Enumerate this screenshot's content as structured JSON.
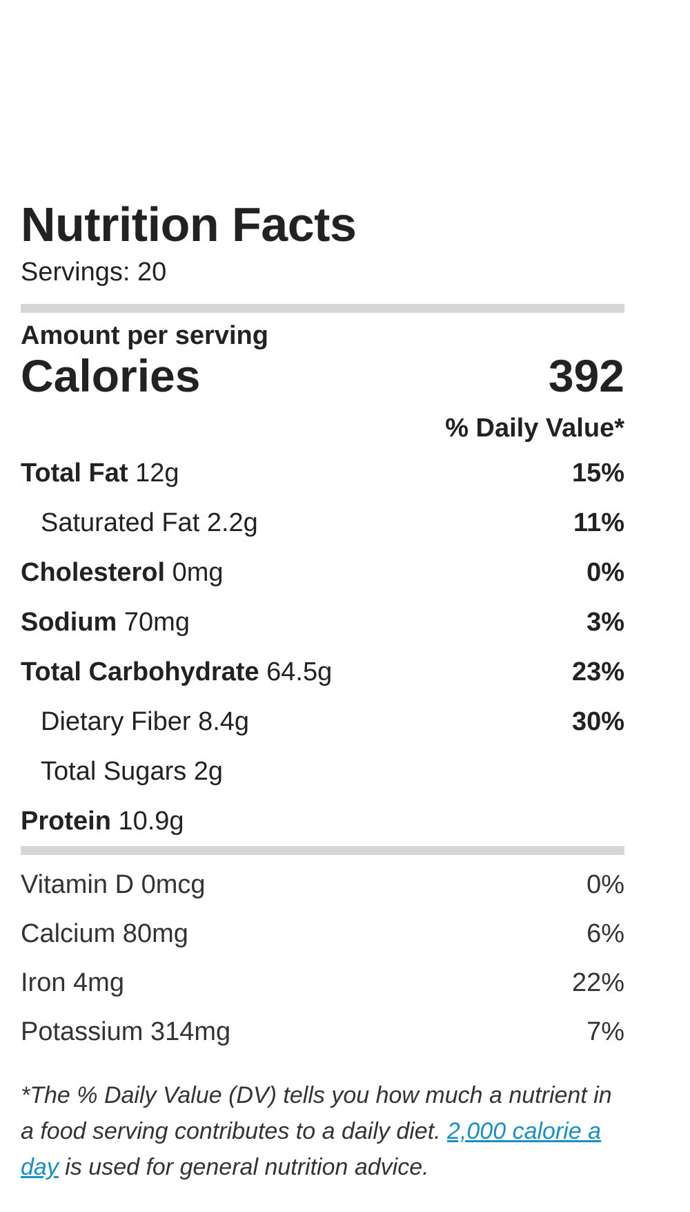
{
  "title": "Nutrition Facts",
  "servings": "Servings: 20",
  "amount_per_serving": "Amount per serving",
  "calories": {
    "label": "Calories",
    "value": "392"
  },
  "daily_value_header": "% Daily Value*",
  "nutrients": [
    {
      "name": "Total Fat",
      "amount": "12g",
      "percent": "15%"
    },
    {
      "name": "Saturated Fat",
      "amount": "2.2g",
      "percent": "11%"
    },
    {
      "name": "Cholesterol",
      "amount": "0mg",
      "percent": "0%"
    },
    {
      "name": "Sodium",
      "amount": "70mg",
      "percent": "3%"
    },
    {
      "name": "Total Carbohydrate",
      "amount": "64.5g",
      "percent": "23%"
    },
    {
      "name": "Dietary Fiber",
      "amount": "8.4g",
      "percent": "30%"
    },
    {
      "name": "Total Sugars",
      "amount": "2g",
      "percent": ""
    },
    {
      "name": "Protein",
      "amount": "10.9g",
      "percent": ""
    }
  ],
  "vitamins": [
    {
      "label": "Vitamin D 0mcg",
      "percent": "0%"
    },
    {
      "label": "Calcium 80mg",
      "percent": "6%"
    },
    {
      "label": "Iron 4mg",
      "percent": "22%"
    },
    {
      "label": "Potassium 314mg",
      "percent": "7%"
    }
  ],
  "footnote": {
    "intro": "*The % Daily Value (DV) tells you how much a nutrient in a food serving contributes to a daily diet.",
    "link_text": "2,000 calorie a day",
    "outro": "is used for general nutrition advice."
  },
  "colors": {
    "bar": "#d6d6d6",
    "link": "#1a8fc4",
    "text": "#222222"
  }
}
